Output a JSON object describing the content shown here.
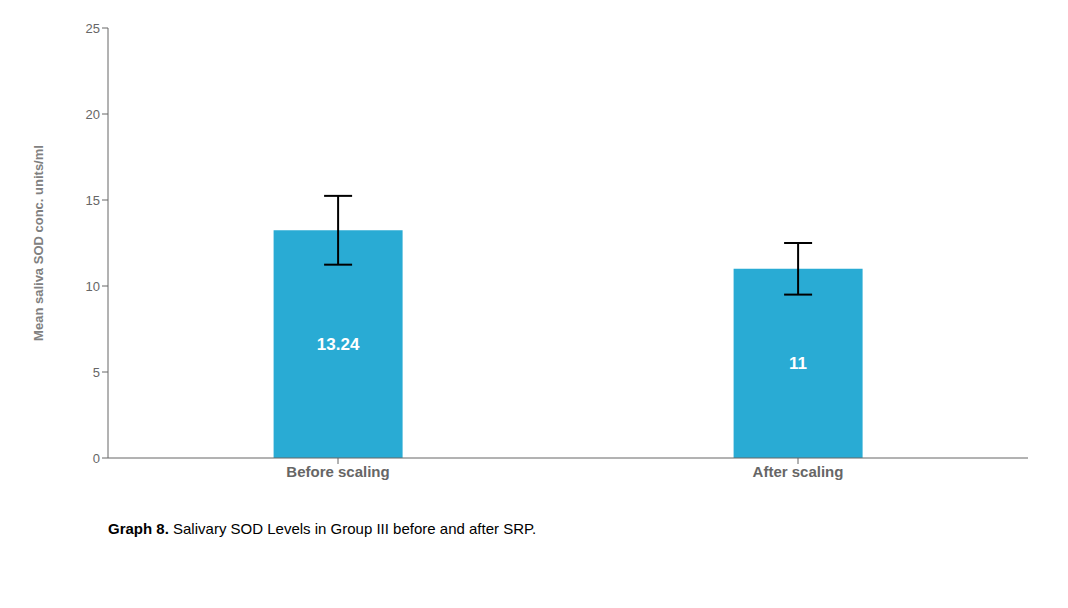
{
  "chart_data": {
    "type": "bar",
    "categories": [
      "Before scaling",
      "After scaling"
    ],
    "values": [
      13.24,
      11
    ],
    "errors": [
      2.0,
      1.5
    ],
    "color": "#29ABD4",
    "ylabel": "Mean  saliva SOD conc. units/ml",
    "ylim": [
      0,
      25
    ],
    "yticks": [
      0,
      5,
      10,
      15,
      20,
      25
    ],
    "grid": false,
    "data_labels": true,
    "annotations": [
      "Graph 8.",
      " Salivary SOD Levels in Group III before and after SRP."
    ]
  }
}
